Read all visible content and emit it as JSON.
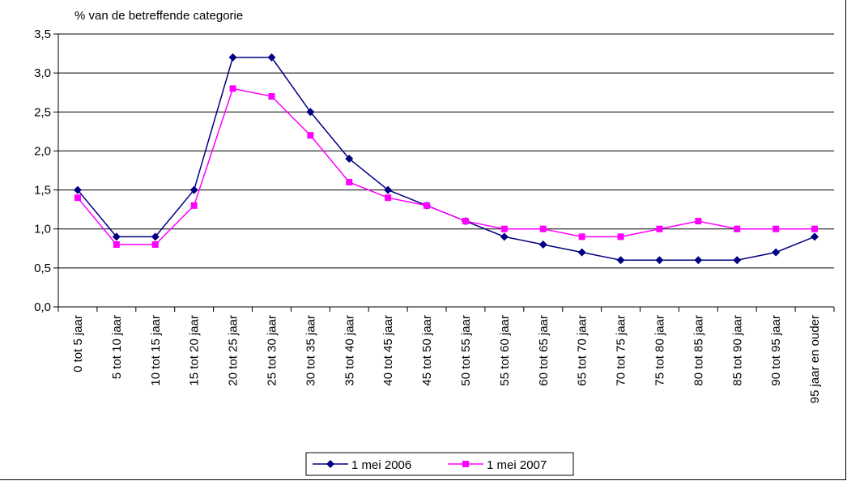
{
  "chart_data": {
    "type": "line",
    "ylabel": "% van de betreffende categorie",
    "ylim": [
      0,
      3.5
    ],
    "ytick_step": 0.5,
    "ytick_labels": [
      "0,0",
      "0,5",
      "1,0",
      "1,5",
      "2,0",
      "2,5",
      "3,0",
      "3,5"
    ],
    "grid": true,
    "legend_position": "bottom",
    "categories": [
      "0 tot 5 jaar",
      "5 tot 10 jaar",
      "10 tot 15 jaar",
      "15 tot 20 jaar",
      "20 tot 25 jaar",
      "25 tot 30 jaar",
      "30 tot 35 jaar",
      "35 tot 40 jaar",
      "40 tot 45 jaar",
      "45 tot 50 jaar",
      "50 tot 55 jaar",
      "55 tot 60 jaar",
      "60 tot 65 jaar",
      "65 tot 70 jaar",
      "70 tot 75 jaar",
      "75 tot 80 jaar",
      "80 tot 85 jaar",
      "85 tot 90 jaar",
      "90 tot 95 jaar",
      "95 jaar en ouder"
    ],
    "series": [
      {
        "name": "1 mei 2006",
        "color": "#000080",
        "marker": "diamond",
        "values": [
          1.5,
          0.9,
          0.9,
          1.5,
          3.2,
          3.2,
          2.5,
          1.9,
          1.5,
          1.3,
          1.1,
          0.9,
          0.8,
          0.7,
          0.6,
          0.6,
          0.6,
          0.6,
          0.7,
          0.9
        ]
      },
      {
        "name": "1 mei 2007",
        "color": "#FF00FF",
        "marker": "square",
        "values": [
          1.4,
          0.8,
          0.8,
          1.3,
          2.8,
          2.7,
          2.2,
          1.6,
          1.4,
          1.3,
          1.1,
          1.0,
          1.0,
          0.9,
          0.9,
          1.0,
          1.1,
          1.0,
          1.0,
          1.0
        ]
      }
    ]
  }
}
